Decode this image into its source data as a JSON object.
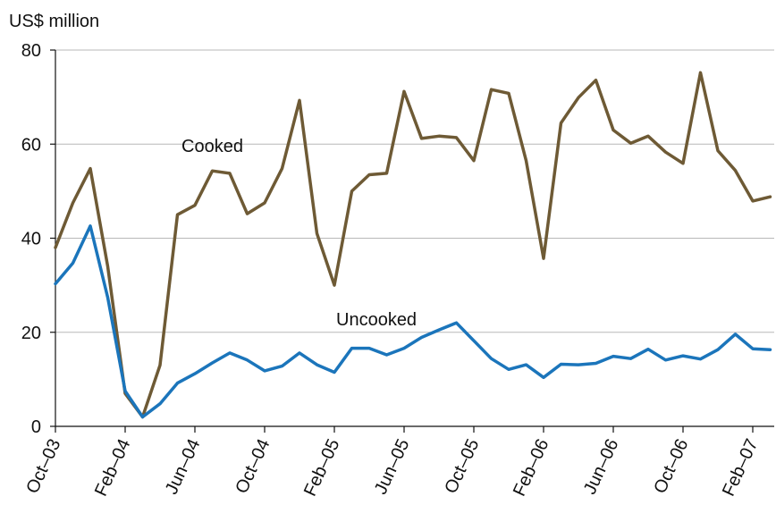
{
  "chart_data": {
    "type": "line",
    "unit_label": "US$ million",
    "ylim": [
      0,
      80
    ],
    "y_ticks": [
      "0",
      "20",
      "40",
      "60",
      "80"
    ],
    "x_tick_labels": [
      "Oct–03",
      "Feb–04",
      "Jun–04",
      "Oct–04",
      "Feb–05",
      "Jun–05",
      "Oct–05",
      "Feb–06",
      "Jun–06",
      "Oct–06",
      "Feb–07"
    ],
    "x": [
      "Oct–03",
      "Nov–03",
      "Dec–03",
      "Jan–04",
      "Feb–04",
      "Mar–04",
      "Apr–04",
      "May–04",
      "Jun–04",
      "Jul–04",
      "Aug–04",
      "Sep–04",
      "Oct–04",
      "Nov–04",
      "Dec–04",
      "Jan–05",
      "Feb–05",
      "Mar–05",
      "Apr–05",
      "May–05",
      "Jun–05",
      "Jul–05",
      "Aug–05",
      "Sep–05",
      "Oct–05",
      "Nov–05",
      "Dec–05",
      "Jan–06",
      "Feb–06",
      "Mar–06",
      "Apr–06",
      "May–06",
      "Jun–06",
      "Jul–06",
      "Aug–06",
      "Sep–06",
      "Oct–06",
      "Nov–06",
      "Dec–06",
      "Jan–07",
      "Feb–07",
      "Mar–07"
    ],
    "grid": "horizontal",
    "series": [
      {
        "name": "Cooked",
        "color": "#6e5a35",
        "values": [
          38,
          47.5,
          54.8,
          34,
          7,
          2,
          13,
          45,
          47,
          54.3,
          53.8,
          45.2,
          47.5,
          54.8,
          69.3,
          41,
          30,
          50,
          53.5,
          53.8,
          71.2,
          61.2,
          61.7,
          61.4,
          56.5,
          71.6,
          70.8,
          56.5,
          35.7,
          64.5,
          69.9,
          73.6,
          63,
          60.2,
          61.7,
          58.3,
          55.9,
          75.2,
          58.6,
          54.4,
          47.9,
          48.8
        ]
      },
      {
        "name": "Uncooked",
        "color": "#1b75bb",
        "values": [
          30.3,
          34.7,
          42.6,
          27.4,
          7.5,
          2,
          4.8,
          9.2,
          11.2,
          13.5,
          15.6,
          14.1,
          11.8,
          12.8,
          15.6,
          13.1,
          11.5,
          16.6,
          16.6,
          15.2,
          16.6,
          18.9,
          20.5,
          22,
          18.2,
          14.4,
          12.1,
          13.1,
          10.4,
          13.2,
          13.1,
          13.4,
          14.9,
          14.4,
          16.4,
          14.1,
          15,
          14.3,
          16.3,
          19.6,
          16.5,
          16.3
        ]
      }
    ]
  }
}
